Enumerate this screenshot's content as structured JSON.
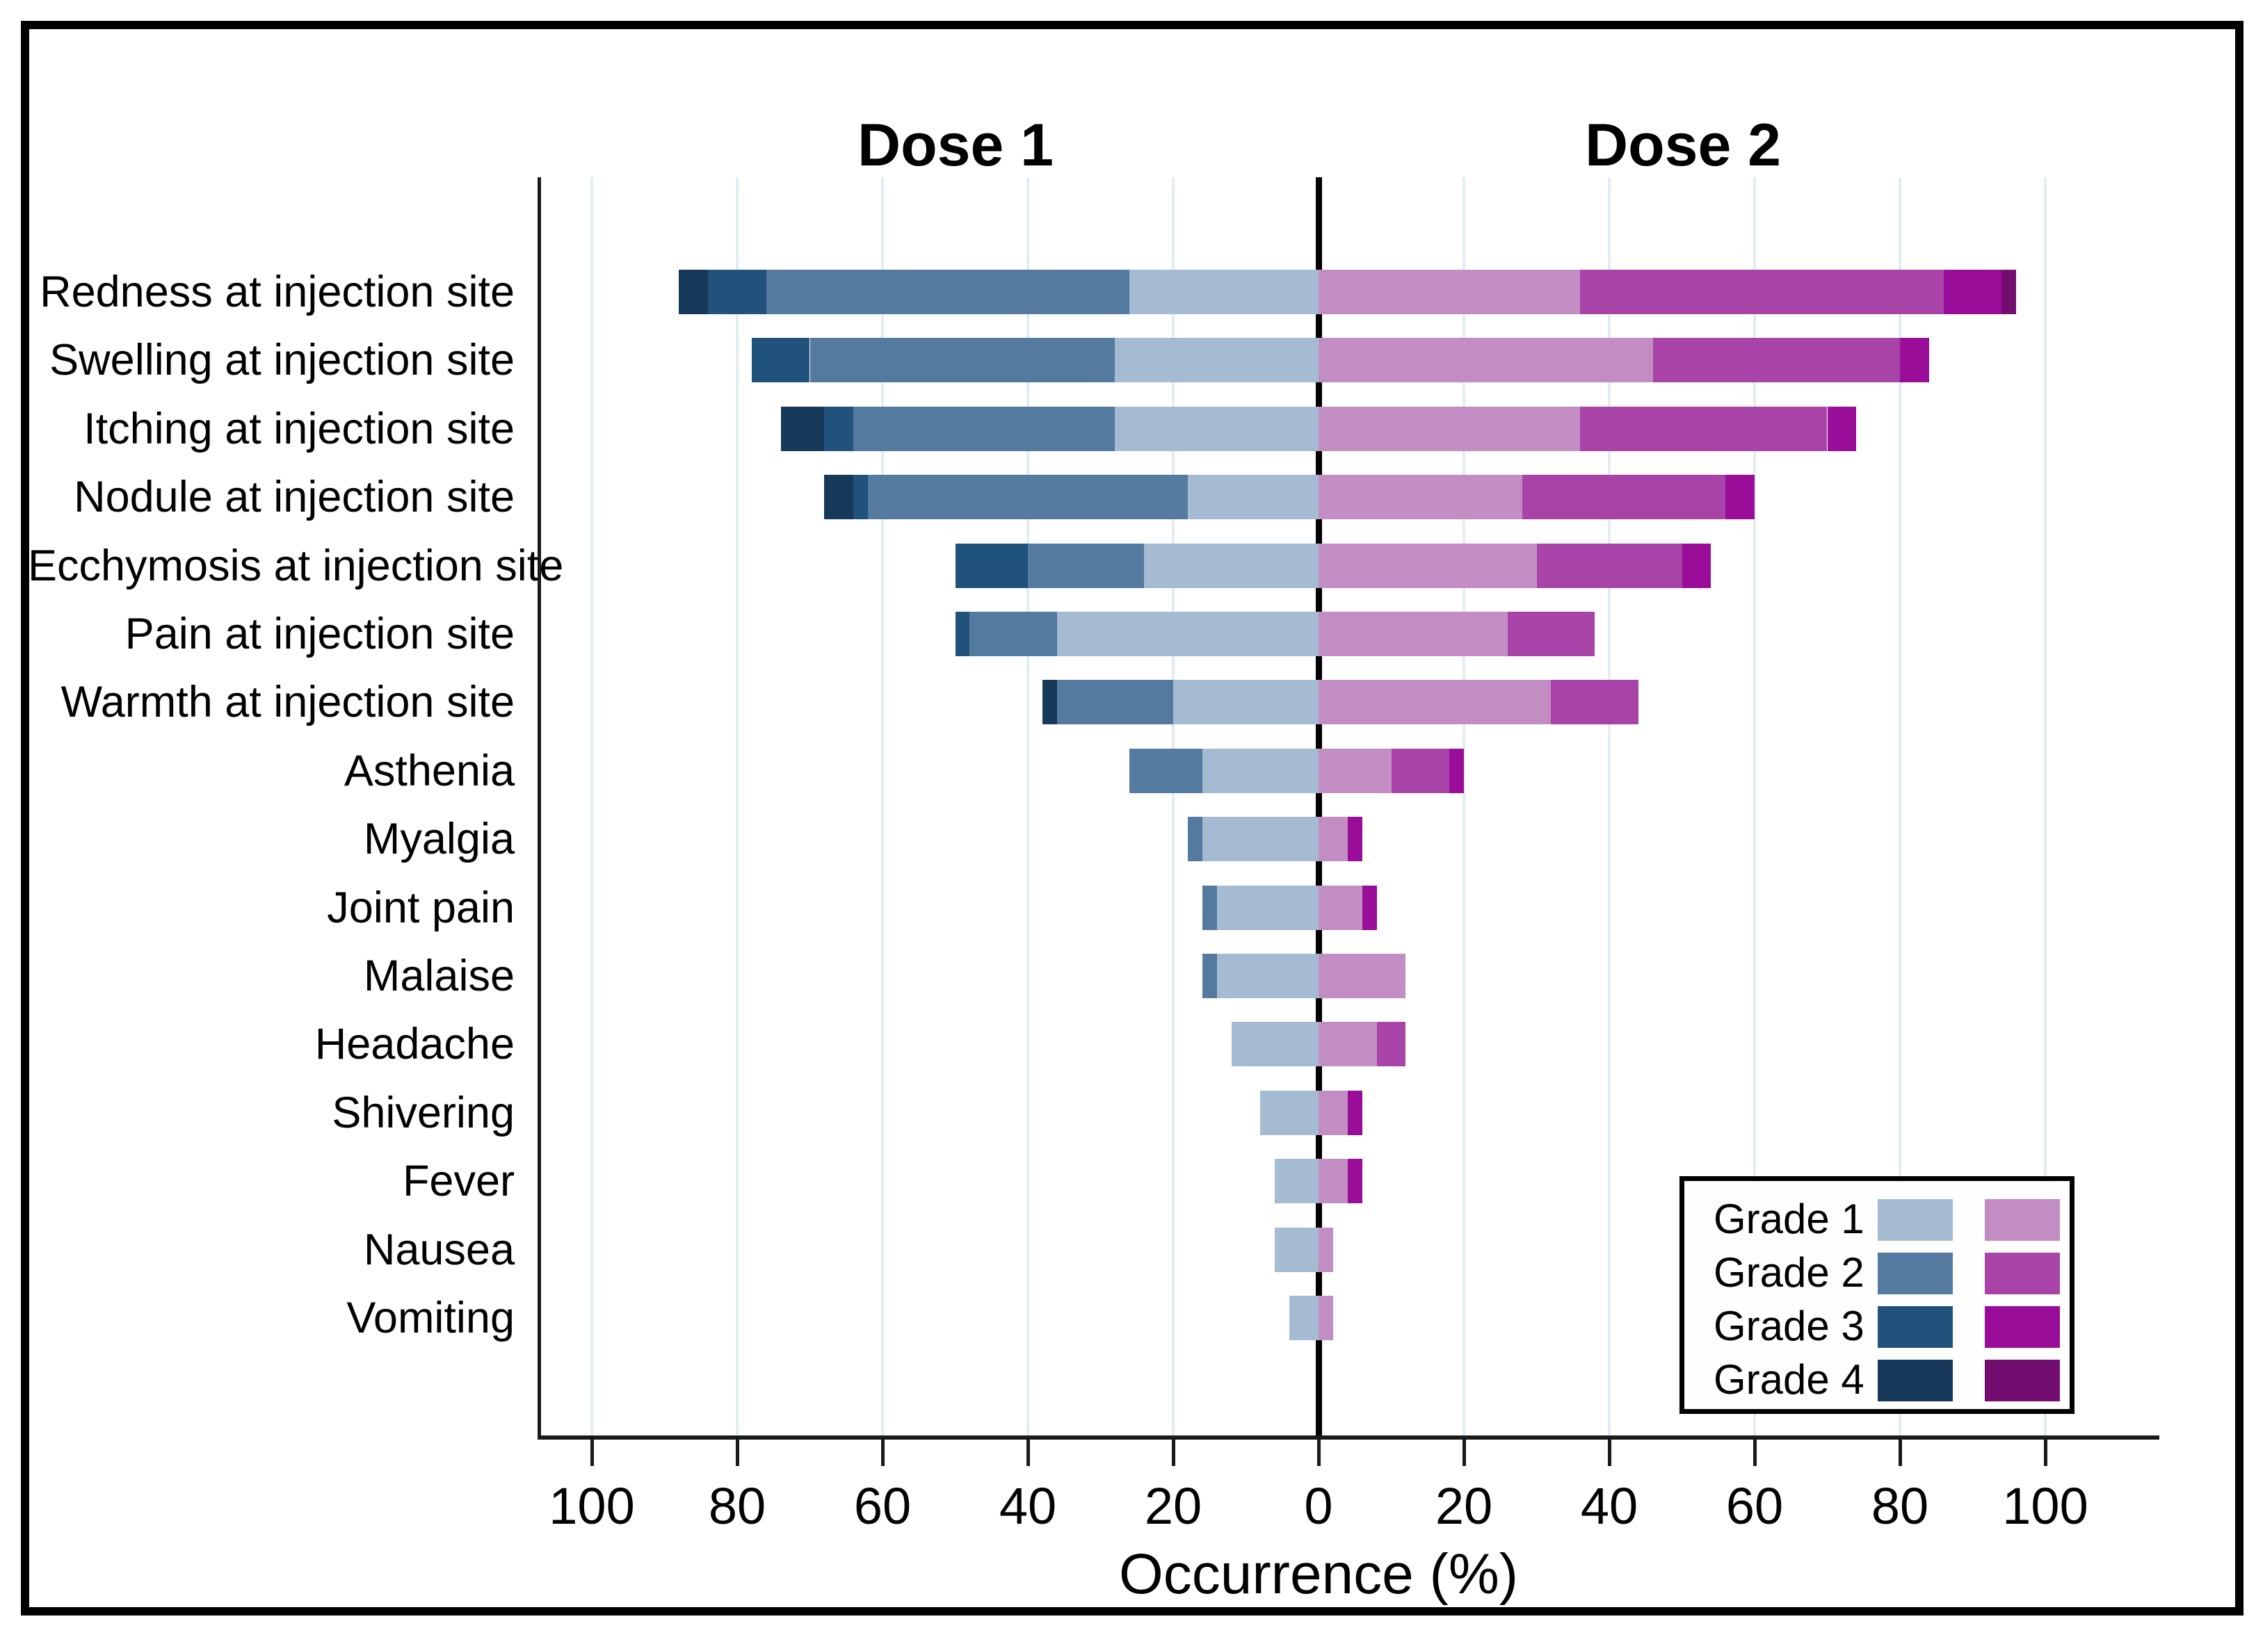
{
  "figure": {
    "panel_title_left": "Dose 1",
    "panel_title_right": "Dose 2"
  },
  "chart_data": {
    "type": "bar",
    "subtype": "diverging-stacked-horizontal",
    "panel_titles": [
      "Dose 1",
      "Dose 2"
    ],
    "xlabel": "Occurrence (%)",
    "x_axis": {
      "tick_values": [
        -100,
        -80,
        -60,
        -40,
        -20,
        0,
        20,
        40,
        60,
        80,
        100
      ],
      "tick_labels": [
        "100",
        "80",
        "60",
        "40",
        "20",
        "0",
        "20",
        "40",
        "60",
        "80",
        "100"
      ],
      "xlim_abs": 100,
      "grid": "on",
      "note": "left half = Dose 1, right half = Dose 2, values are absolute %"
    },
    "legend": {
      "position": "bottom-right",
      "items": [
        "Grade 1",
        "Grade 2",
        "Grade 3",
        "Grade 4"
      ]
    },
    "colors": {
      "dose1": {
        "g1": "#a4bbd1",
        "g2": "#547a9f",
        "g3": "#20527b",
        "g4": "#16395a"
      },
      "dose2": {
        "g1": "#c28dc2",
        "g2": "#a844a8",
        "g3": "#990d99",
        "g4": "#740d70"
      },
      "gridline": "#e2edf2",
      "axis": "#000000"
    },
    "grade_order_from_axis": [
      "g1",
      "g2",
      "g3",
      "g4"
    ],
    "rows": [
      {
        "label": "Redness at injection site",
        "dose1": [
          26,
          50,
          8,
          4
        ],
        "dose2": [
          36,
          50,
          8,
          2
        ]
      },
      {
        "label": "Swelling at injection site",
        "dose1": [
          28,
          42,
          8,
          0
        ],
        "dose2": [
          46,
          34,
          4,
          0
        ]
      },
      {
        "label": "Itching at injection site",
        "dose1": [
          28,
          36,
          4,
          6
        ],
        "dose2": [
          36,
          34,
          4,
          0
        ]
      },
      {
        "label": "Nodule at injection site",
        "dose1": [
          18,
          44,
          2,
          4
        ],
        "dose2": [
          28,
          28,
          4,
          0
        ]
      },
      {
        "label": "Ecchymosis at injection site",
        "dose1": [
          24,
          16,
          10,
          0
        ],
        "dose2": [
          30,
          20,
          4,
          0
        ]
      },
      {
        "label": "Pain at injection site",
        "dose1": [
          36,
          12,
          2,
          0
        ],
        "dose2": [
          26,
          12,
          0,
          0
        ]
      },
      {
        "label": "Warmth at injection site",
        "dose1": [
          20,
          16,
          0,
          2
        ],
        "dose2": [
          32,
          12,
          0,
          0
        ]
      },
      {
        "label": "Asthenia",
        "dose1": [
          16,
          10,
          0,
          0
        ],
        "dose2": [
          10,
          8,
          2,
          0
        ]
      },
      {
        "label": "Myalgia",
        "dose1": [
          16,
          2,
          0,
          0
        ],
        "dose2": [
          4,
          0,
          2,
          0
        ]
      },
      {
        "label": "Joint pain",
        "dose1": [
          14,
          2,
          0,
          0
        ],
        "dose2": [
          6,
          0,
          2,
          0
        ]
      },
      {
        "label": "Malaise",
        "dose1": [
          14,
          2,
          0,
          0
        ],
        "dose2": [
          12,
          0,
          0,
          0
        ]
      },
      {
        "label": "Headache",
        "dose1": [
          12,
          0,
          0,
          0
        ],
        "dose2": [
          8,
          4,
          0,
          0
        ]
      },
      {
        "label": "Shivering",
        "dose1": [
          8,
          0,
          0,
          0
        ],
        "dose2": [
          4,
          0,
          2,
          0
        ]
      },
      {
        "label": "Fever",
        "dose1": [
          6,
          0,
          0,
          0
        ],
        "dose2": [
          4,
          0,
          2,
          0
        ]
      },
      {
        "label": "Nausea",
        "dose1": [
          6,
          0,
          0,
          0
        ],
        "dose2": [
          2,
          0,
          0,
          0
        ]
      },
      {
        "label": "Vomiting",
        "dose1": [
          4,
          0,
          0,
          0
        ],
        "dose2": [
          2,
          0,
          0,
          0
        ]
      }
    ]
  }
}
